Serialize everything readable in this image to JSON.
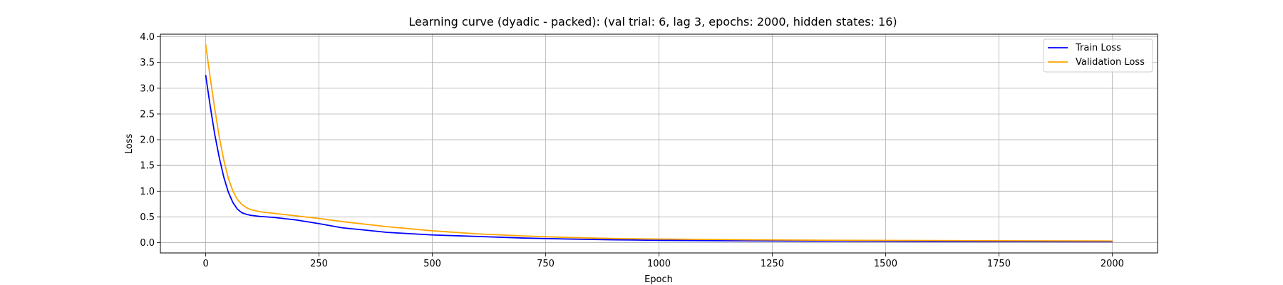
{
  "chart_data": {
    "type": "line",
    "title": "Learning curve (dyadic - packed): (val trial: 6, lag 3, epochs: 2000, hidden states: 16)",
    "xlabel": "Epoch",
    "ylabel": "Loss",
    "xlim": [
      -100,
      2100
    ],
    "ylim": [
      -0.2,
      4.05
    ],
    "xticks": [
      0,
      250,
      500,
      750,
      1000,
      1250,
      1500,
      1750,
      2000
    ],
    "yticks": [
      0.0,
      0.5,
      1.0,
      1.5,
      2.0,
      2.5,
      3.0,
      3.5,
      4.0
    ],
    "xtick_labels": [
      "0",
      "250",
      "500",
      "750",
      "1000",
      "1250",
      "1500",
      "1750",
      "2000"
    ],
    "ytick_labels": [
      "0.0",
      "0.5",
      "1.0",
      "1.5",
      "2.0",
      "2.5",
      "3.0",
      "3.5",
      "4.0"
    ],
    "grid": true,
    "legend_position": "top-right",
    "series": [
      {
        "name": "Train Loss",
        "color": "#0000ff",
        "x": [
          0,
          10,
          20,
          30,
          40,
          50,
          60,
          70,
          80,
          90,
          100,
          120,
          150,
          200,
          250,
          300,
          400,
          500,
          600,
          700,
          800,
          900,
          1000,
          1200,
          1400,
          1600,
          1800,
          2000
        ],
        "y": [
          3.25,
          2.65,
          2.1,
          1.65,
          1.27,
          0.98,
          0.78,
          0.65,
          0.58,
          0.55,
          0.53,
          0.51,
          0.49,
          0.44,
          0.37,
          0.29,
          0.2,
          0.15,
          0.12,
          0.09,
          0.07,
          0.055,
          0.045,
          0.035,
          0.028,
          0.022,
          0.02,
          0.018
        ]
      },
      {
        "name": "Validation Loss",
        "color": "#ffa500",
        "x": [
          0,
          10,
          20,
          30,
          40,
          50,
          60,
          70,
          80,
          90,
          100,
          120,
          150,
          200,
          250,
          300,
          400,
          500,
          600,
          700,
          800,
          900,
          1000,
          1200,
          1400,
          1600,
          1800,
          2000
        ],
        "y": [
          3.85,
          3.2,
          2.6,
          2.05,
          1.6,
          1.25,
          1.0,
          0.84,
          0.74,
          0.68,
          0.64,
          0.6,
          0.57,
          0.52,
          0.47,
          0.41,
          0.31,
          0.23,
          0.17,
          0.13,
          0.1,
          0.08,
          0.07,
          0.055,
          0.045,
          0.04,
          0.035,
          0.032
        ]
      }
    ]
  }
}
